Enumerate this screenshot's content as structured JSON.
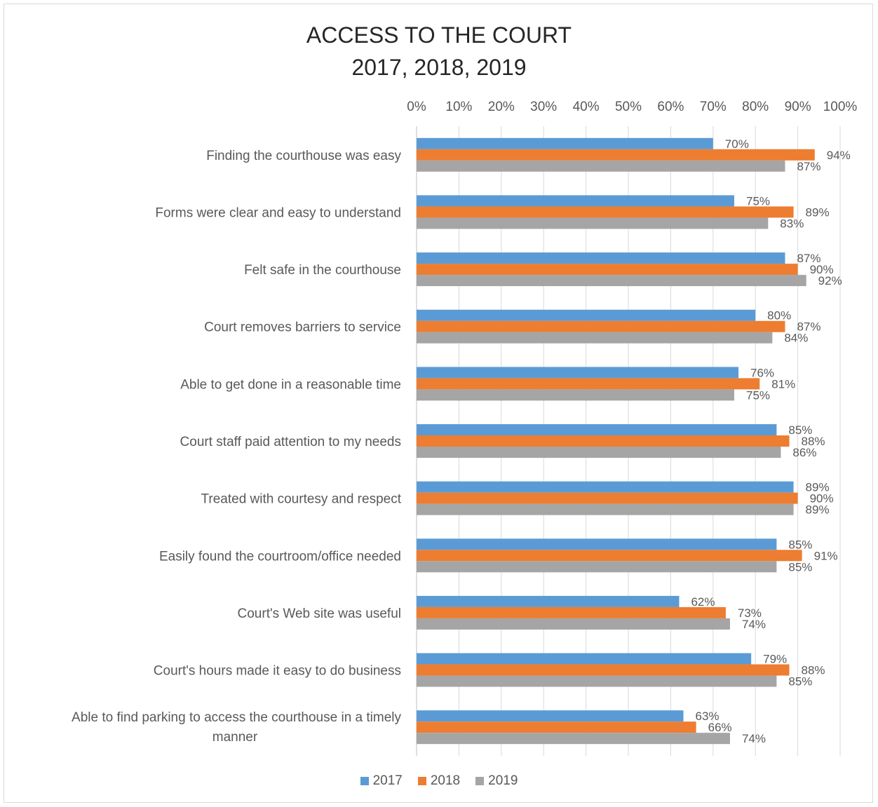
{
  "chart_data": {
    "type": "bar",
    "orientation": "horizontal",
    "title": "ACCESS TO THE COURT",
    "subtitle": "2017, 2018, 2019",
    "categories": [
      "Finding the courthouse was easy",
      "Forms were clear and easy to understand",
      "Felt safe in the courthouse",
      "Court removes barriers to service",
      "Able to get done in a reasonable time",
      "Court staff paid attention to my needs",
      "Treated with courtesy and respect",
      "Easily found the courtroom/office needed",
      "Court's Web site was useful",
      "Court's hours made it easy to do business",
      "Able to find parking to access the courthouse in a timely manner"
    ],
    "series": [
      {
        "name": "2017",
        "color": "#5b9bd5",
        "values": [
          70,
          75,
          87,
          80,
          76,
          85,
          89,
          85,
          62,
          79,
          63
        ]
      },
      {
        "name": "2018",
        "color": "#ed7d31",
        "values": [
          94,
          89,
          90,
          87,
          81,
          88,
          90,
          91,
          73,
          88,
          66
        ]
      },
      {
        "name": "2019",
        "color": "#a5a5a5",
        "values": [
          87,
          83,
          92,
          84,
          75,
          86,
          89,
          85,
          74,
          85,
          74
        ]
      }
    ],
    "x_ticks": [
      "0%",
      "10%",
      "20%",
      "30%",
      "40%",
      "50%",
      "60%",
      "70%",
      "80%",
      "90%",
      "100%"
    ],
    "xlim": [
      0,
      100
    ],
    "value_format": "percent",
    "axis_position": "top",
    "grid": true,
    "legend_position": "bottom"
  }
}
